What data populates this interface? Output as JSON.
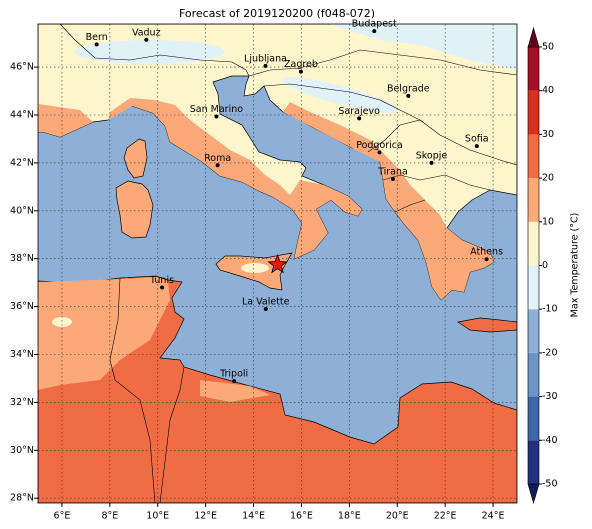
{
  "title": "Forecast of 2019120200 (f048-072)",
  "map": {
    "lonlim": [
      5,
      25
    ],
    "latlim": [
      27.8,
      47.8
    ],
    "grid": true,
    "lonticks": [
      {
        "value": 6,
        "label": "6°E"
      },
      {
        "value": 8,
        "label": "8°E"
      },
      {
        "value": 10,
        "label": "10°E"
      },
      {
        "value": 12,
        "label": "12°E"
      },
      {
        "value": 14,
        "label": "14°E"
      },
      {
        "value": 16,
        "label": "16°E"
      },
      {
        "value": 18,
        "label": "18°E"
      },
      {
        "value": 20,
        "label": "20°E"
      },
      {
        "value": 22,
        "label": "22°E"
      },
      {
        "value": 24,
        "label": "24°E"
      }
    ],
    "latticks": [
      {
        "value": 28,
        "label": "28°N"
      },
      {
        "value": 30,
        "label": "30°N"
      },
      {
        "value": 32,
        "label": "32°N"
      },
      {
        "value": 34,
        "label": "34°N"
      },
      {
        "value": 36,
        "label": "36°N"
      },
      {
        "value": 38,
        "label": "38°N"
      },
      {
        "value": 40,
        "label": "40°N"
      },
      {
        "value": 42,
        "label": "42°N"
      },
      {
        "value": 44,
        "label": "44°N"
      },
      {
        "value": 46,
        "label": "46°N"
      }
    ],
    "cities": [
      {
        "name": "Bern",
        "lon": 7.45,
        "lat": 46.95
      },
      {
        "name": "Vaduz",
        "lon": 9.52,
        "lat": 47.14
      },
      {
        "name": "Budapest",
        "lon": 19.04,
        "lat": 47.5
      },
      {
        "name": "Ljubljana",
        "lon": 14.5,
        "lat": 46.05
      },
      {
        "name": "Zagreb",
        "lon": 15.98,
        "lat": 45.81
      },
      {
        "name": "Belgrade",
        "lon": 20.46,
        "lat": 44.8
      },
      {
        "name": "San Marino",
        "lon": 12.45,
        "lat": 43.94
      },
      {
        "name": "Sarajevo",
        "lon": 18.41,
        "lat": 43.86
      },
      {
        "name": "Sofia",
        "lon": 23.32,
        "lat": 42.7
      },
      {
        "name": "Podgorica",
        "lon": 19.26,
        "lat": 42.44
      },
      {
        "name": "Skopje",
        "lon": 21.43,
        "lat": 42.0
      },
      {
        "name": "Roma",
        "lon": 12.5,
        "lat": 41.9
      },
      {
        "name": "Tirana",
        "lon": 19.82,
        "lat": 41.33
      },
      {
        "name": "Athens",
        "lon": 23.73,
        "lat": 37.98
      },
      {
        "name": "Tunis",
        "lon": 10.18,
        "lat": 36.8
      },
      {
        "name": "La Valette",
        "lon": 14.51,
        "lat": 35.9
      },
      {
        "name": "Tripoli",
        "lon": 13.19,
        "lat": 32.89
      }
    ],
    "marker": {
      "lon": 15.0,
      "lat": 37.75,
      "color": "#e31a1c"
    }
  },
  "colorbar": {
    "label": "Max Temperature (°C)",
    "ticks": [
      -50,
      -40,
      -30,
      -20,
      -10,
      0,
      10,
      20,
      30,
      40,
      50
    ],
    "colors": [
      "#22307f",
      "#3f67a8",
      "#6c95c5",
      "#8fb0d6",
      "#e0f1f8",
      "#fdf6cd",
      "#fca97a",
      "#f06c45",
      "#d7301f",
      "#a50f26"
    ],
    "under_color": "#101c5e",
    "over_color": "#67001f"
  }
}
